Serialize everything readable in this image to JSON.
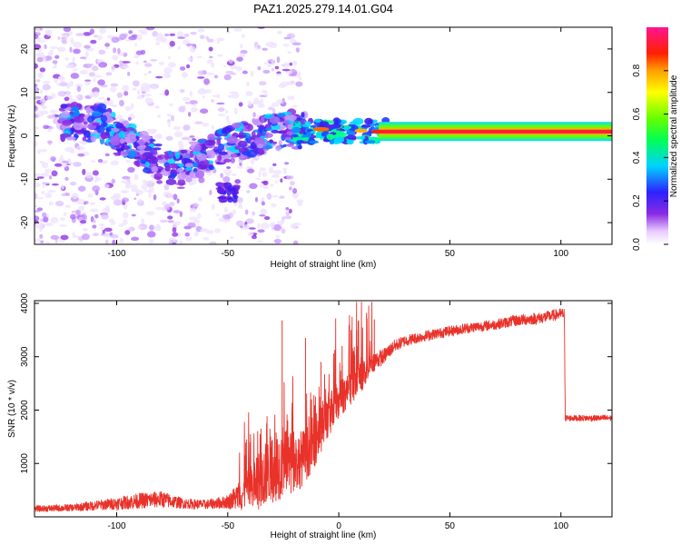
{
  "title": "PAZ1.2025.279.14.01.G04",
  "colors": {
    "axis": "#000000",
    "snr_line": "#e8322a",
    "background": "#ffffff"
  },
  "chart_data": [
    {
      "type": "heatmap",
      "title": "PAZ1.2025.279.14.01.G04",
      "xlabel": "Height of straight line (km)",
      "ylabel": "Frequency (Hz)",
      "xlim": [
        -137,
        123
      ],
      "ylim": [
        -25,
        25
      ],
      "xticks": [
        -100,
        -50,
        0,
        50,
        100
      ],
      "xtick_labels": [
        "-100",
        "-50",
        "0",
        "50",
        "100"
      ],
      "yticks": [
        -20,
        -10,
        0,
        10,
        20
      ],
      "ytick_labels": [
        "-20",
        "-10",
        "0",
        "10",
        "20"
      ],
      "colorbar": {
        "label": "Normalized spectral amplitude",
        "range": [
          0,
          1
        ],
        "ticks": [
          0,
          0.2,
          0.4,
          0.6,
          0.8
        ],
        "tick_labels": [
          "0.0",
          "0.2",
          "0.4",
          "0.6",
          "0.8"
        ],
        "colormap": "rainbow (white-violet-blue-cyan-green-yellow-red-magenta)"
      },
      "description": "Scattered low-amplitude speckle at heights below about -20 km with a main ridge falling from ~+5 Hz at -110 km to ~-8 Hz at -75 km; from -20 km upward a single strong line near +1 Hz extends to the top of the plot."
    },
    {
      "type": "line",
      "xlabel": "Height of straight line (km)",
      "ylabel": "SNR (10 * v/v)",
      "xlim": [
        -137,
        123
      ],
      "ylim": [
        0,
        4050
      ],
      "xticks": [
        -100,
        -50,
        0,
        50,
        100
      ],
      "xtick_labels": [
        "-100",
        "-50",
        "0",
        "50",
        "100"
      ],
      "yticks": [
        1000,
        2000,
        3000,
        4000
      ],
      "ytick_labels": [
        "1000",
        "2000",
        "3000",
        "4000"
      ],
      "series": [
        {
          "name": "SNR",
          "color": "#e8322a",
          "envelope_x": [
            -137,
            -120,
            -100,
            -90,
            -80,
            -70,
            -60,
            -50,
            -40,
            -35,
            -30,
            -25,
            -20,
            -15,
            -10,
            -5,
            0,
            5,
            10,
            15,
            20,
            25,
            30,
            40,
            50,
            60,
            70,
            80,
            90,
            100,
            101.5,
            102,
            110,
            123
          ],
          "envelope_y": [
            150,
            170,
            250,
            300,
            330,
            250,
            230,
            280,
            500,
            700,
            900,
            1000,
            1000,
            1150,
            1500,
            1900,
            2200,
            2400,
            2600,
            2900,
            3000,
            3200,
            3300,
            3400,
            3480,
            3550,
            3600,
            3680,
            3720,
            3800,
            3800,
            1850,
            1850,
            1850
          ],
          "noise": [
            60,
            70,
            120,
            150,
            160,
            100,
            90,
            130,
            450,
            600,
            650,
            650,
            600,
            500,
            500,
            450,
            350,
            320,
            300,
            200,
            150,
            120,
            110,
            100,
            100,
            100,
            100,
            110,
            110,
            110,
            110,
            60,
            60,
            60
          ],
          "spikes": [
            {
              "x": -25.5,
              "y": 3680
            },
            {
              "x": -15,
              "y": 3350
            },
            {
              "x": 1.5,
              "y": 3200
            },
            {
              "x": 8,
              "y": 3500
            },
            {
              "x": 12.5,
              "y": 3820
            },
            {
              "x": 16,
              "y": 3700
            },
            {
              "x": -8,
              "y": 2900
            }
          ]
        }
      ]
    }
  ]
}
